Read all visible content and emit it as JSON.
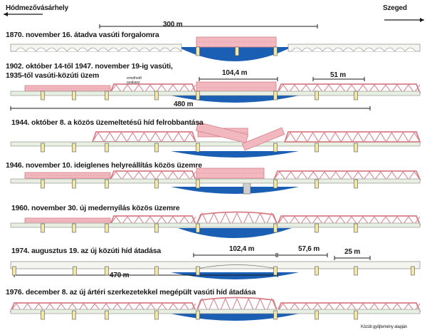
{
  "cities": {
    "left": "Hódmezővásárhely",
    "right": "Szeged"
  },
  "colors": {
    "water": "#1a5fb4",
    "pink": "#f1b9bf",
    "pink_dark": "#d77d86",
    "deck": "#e7eee2",
    "pier": "#f2e8a6",
    "line": "#1b1b1b"
  },
  "rows": [
    {
      "id": "r1870",
      "title": "1870. november 16. átadva vasúti forgalomra"
    },
    {
      "id": "r1902",
      "title": "1902. október 14-től 1947. november 19-ig vasúti,",
      "title2": "1935-től vasúti-közúti üzem"
    },
    {
      "id": "r1944",
      "title": "1944. október 8. a közös üzemeltetésű híd felrobbantása"
    },
    {
      "id": "r1946",
      "title": "1946. november 10. ideiglenes helyreállítás közös üzemre"
    },
    {
      "id": "r1960",
      "title": "1960. november 30. új medernyílás közös üzemre"
    },
    {
      "id": "r1974",
      "title": "1974. augusztus 19. az új közúti híd átadása"
    },
    {
      "id": "r1976",
      "title": "1976. december 8. az új ártéri szerkezetekkel megépült vasúti híd átadása"
    }
  ],
  "dimensions": {
    "d300": "300 m",
    "d104": "104,4 m",
    "d51": "51 m",
    "d480": "480 m",
    "d102": "102,4 m",
    "d57": "57,6 m",
    "d25": "25 m",
    "d470": "470 m"
  },
  "notes": {
    "lift": "emelhető\nszakasz",
    "credit": "Közúti gyűjtemény alapján"
  }
}
